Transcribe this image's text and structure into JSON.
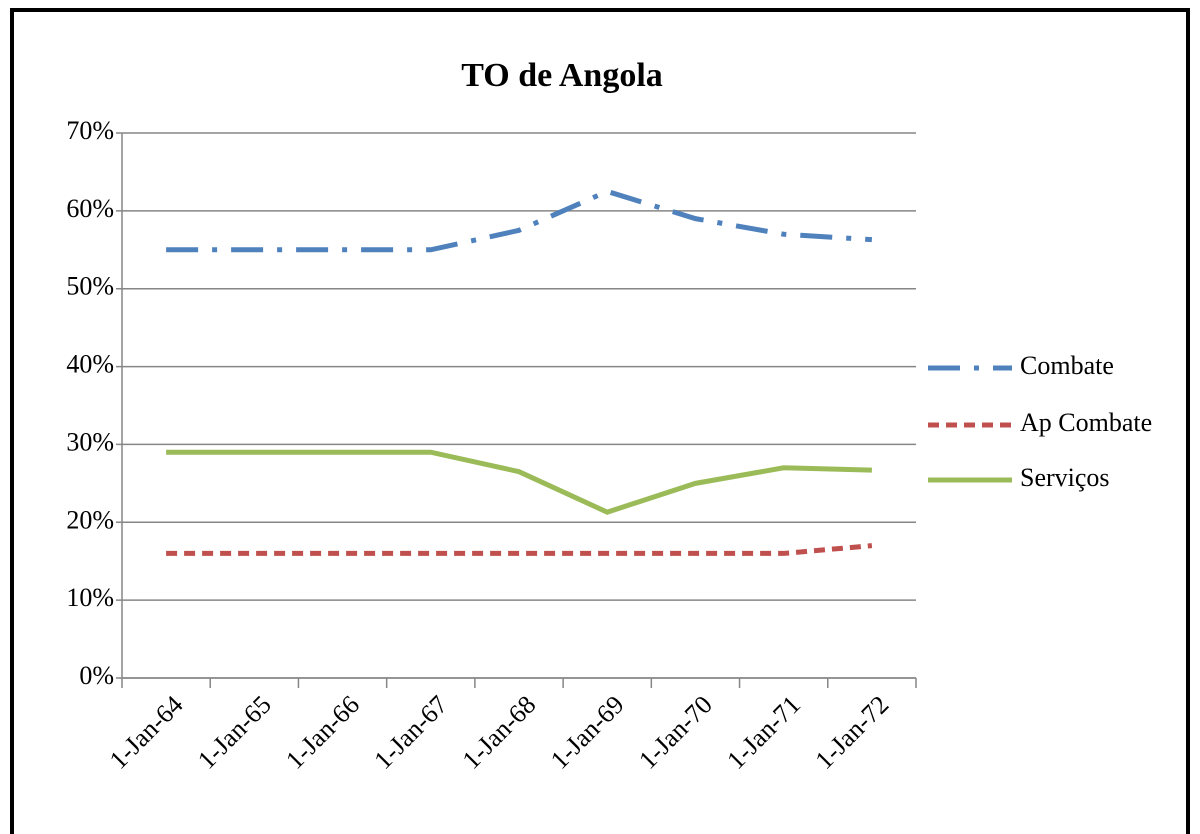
{
  "chart_data": {
    "type": "line",
    "title": "TO de Angola",
    "categories": [
      "1-Jan-64",
      "1-Jan-65",
      "1-Jan-66",
      "1-Jan-67",
      "1-Jan-68",
      "1-Jan-69",
      "1-Jan-70",
      "1-Jan-71",
      "1-Jan-72"
    ],
    "series": [
      {
        "name": "Combate",
        "color": "#4f81bd",
        "style": "dash-dot",
        "values": [
          55,
          55,
          55,
          55,
          57.5,
          62.5,
          59,
          57,
          56.3
        ]
      },
      {
        "name": "Ap Combate",
        "color": "#c0504d",
        "style": "dashed",
        "values": [
          16,
          16,
          16,
          16,
          16,
          16,
          16,
          16,
          17
        ]
      },
      {
        "name": "Serviços",
        "color": "#9bbb59",
        "style": "solid",
        "values": [
          29,
          29,
          29,
          29,
          26.5,
          21.3,
          25,
          27,
          26.7
        ]
      }
    ],
    "ylim": [
      0,
      70
    ],
    "yticks": [
      {
        "value": 0,
        "label": "0%"
      },
      {
        "value": 10,
        "label": "10%"
      },
      {
        "value": 20,
        "label": "20%"
      },
      {
        "value": 30,
        "label": "30%"
      },
      {
        "value": 40,
        "label": "40%"
      },
      {
        "value": 50,
        "label": "50%"
      },
      {
        "value": 60,
        "label": "60%"
      },
      {
        "value": 70,
        "label": "70%"
      }
    ],
    "grid": true,
    "legend": "right"
  }
}
